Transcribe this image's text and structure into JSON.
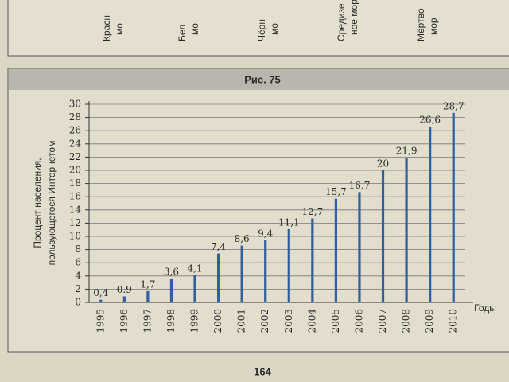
{
  "page": {
    "fragments": [
      {
        "lines": [
          "Красн",
          "мо"
        ]
      },
      {
        "lines": [
          "Бел",
          "мо"
        ]
      },
      {
        "lines": [
          "Чёрн",
          "мо"
        ]
      },
      {
        "lines": [
          "Средизе",
          "ное мор"
        ]
      },
      {
        "lines": [
          "Мёртво",
          "мор"
        ]
      }
    ],
    "figure_label": "Рис. 75",
    "page_number": "164"
  },
  "chart_data": {
    "type": "bar",
    "y_label": [
      "Процент населения,",
      "пользующегося Интернетом"
    ],
    "x_label": "Годы",
    "categories": [
      "1995",
      "1996",
      "1997",
      "1998",
      "1999",
      "2000",
      "2001",
      "2002",
      "2003",
      "2004",
      "2005",
      "2006",
      "2007",
      "2008",
      "2009",
      "2010"
    ],
    "values": [
      0.4,
      0.9,
      1.7,
      3.6,
      4.1,
      7.4,
      8.6,
      9.4,
      11.1,
      12.7,
      15.7,
      16.7,
      20,
      21.9,
      26.6,
      28.7
    ],
    "value_labels": [
      "0,4",
      "0.9",
      "1,7",
      "3,6",
      "4,1",
      "7,4",
      "8,6",
      "9,4",
      "11,1",
      "12,7",
      "15,7",
      "16,7",
      "20",
      "21,9",
      "26,6",
      "28,7"
    ],
    "color": "#2f5f9e",
    "ylim": [
      0,
      30
    ],
    "yticks": [
      0,
      2,
      4,
      6,
      8,
      10,
      12,
      14,
      16,
      18,
      20,
      22,
      24,
      26,
      28,
      30
    ],
    "grid": true
  }
}
